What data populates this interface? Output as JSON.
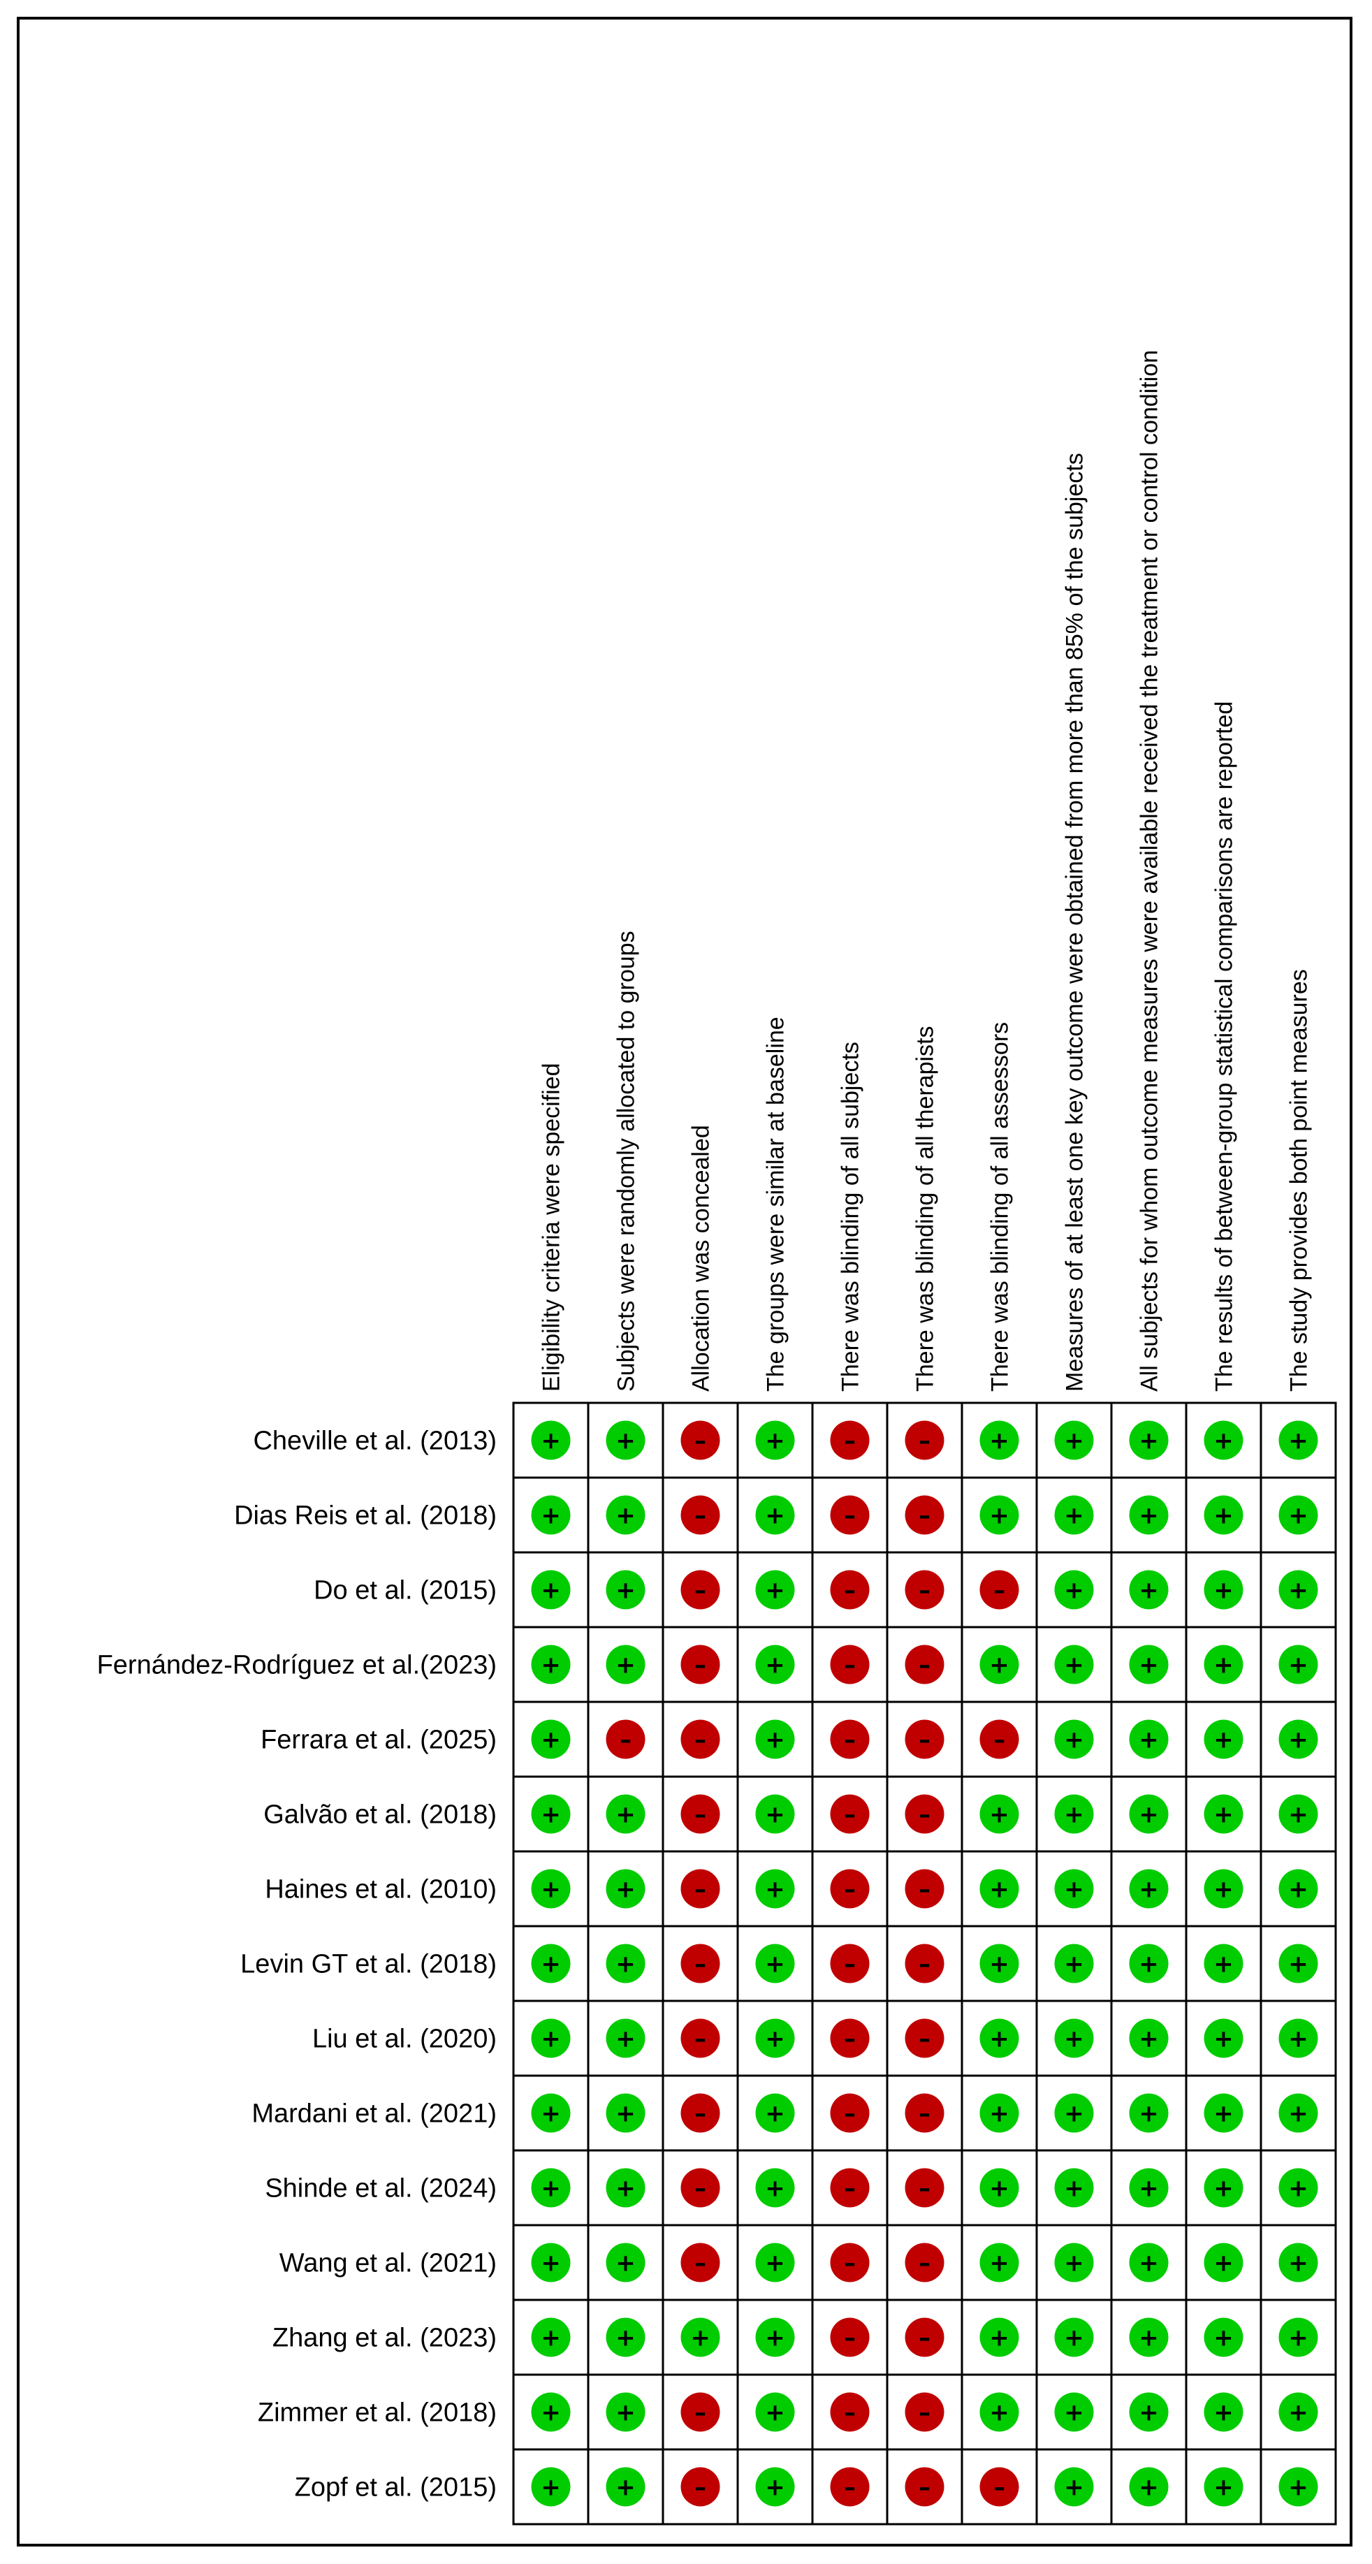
{
  "chart_data": {
    "type": "table",
    "title": "",
    "criteria": [
      "Eligibility criteria were specified",
      "Subjects were randomly allocated to groups",
      "Allocation was concealed",
      "The groups were similar at baseline",
      "There was blinding of all subjects",
      "There was blinding of all therapists",
      "There was blinding of all assessors",
      "Measures of at least one key outcome were obtained from more than 85% of the subjects",
      "All subjects for whom outcome measures were available received the treatment or control condition",
      "The results of between-group statistical comparisons are reported",
      "The study provides both point measures"
    ],
    "studies": [
      "Cheville et al. (2013)",
      "Dias Reis et al. (2018)",
      "Do et al. (2015)",
      "Fernández-Rodríguez et al.(2023)",
      "Ferrara et al. (2025)",
      "Galvão et al. (2018)",
      "Haines et al. (2010)",
      "Levin GT et al. (2018)",
      "Liu et al. (2020)",
      "Mardani et al. (2021)",
      "Shinde et al. (2024)",
      "Wang et al. (2021)",
      "Zhang et al. (2023)",
      "Zimmer et al. (2018)",
      "Zopf et al. (2015)"
    ],
    "judgements": [
      [
        "+",
        "+",
        "-",
        "+",
        "-",
        "-",
        "+",
        "+",
        "+",
        "+",
        "+"
      ],
      [
        "+",
        "+",
        "-",
        "+",
        "-",
        "-",
        "+",
        "+",
        "+",
        "+",
        "+"
      ],
      [
        "+",
        "+",
        "-",
        "+",
        "-",
        "-",
        "-",
        "+",
        "+",
        "+",
        "+"
      ],
      [
        "+",
        "+",
        "-",
        "+",
        "-",
        "-",
        "+",
        "+",
        "+",
        "+",
        "+"
      ],
      [
        "+",
        "-",
        "-",
        "+",
        "-",
        "-",
        "-",
        "+",
        "+",
        "+",
        "+"
      ],
      [
        "+",
        "+",
        "-",
        "+",
        "-",
        "-",
        "+",
        "+",
        "+",
        "+",
        "+"
      ],
      [
        "+",
        "+",
        "-",
        "+",
        "-",
        "-",
        "+",
        "+",
        "+",
        "+",
        "+"
      ],
      [
        "+",
        "+",
        "-",
        "+",
        "-",
        "-",
        "+",
        "+",
        "+",
        "+",
        "+"
      ],
      [
        "+",
        "+",
        "-",
        "+",
        "-",
        "-",
        "+",
        "+",
        "+",
        "+",
        "+"
      ],
      [
        "+",
        "+",
        "-",
        "+",
        "-",
        "-",
        "+",
        "+",
        "+",
        "+",
        "+"
      ],
      [
        "+",
        "+",
        "-",
        "+",
        "-",
        "-",
        "+",
        "+",
        "+",
        "+",
        "+"
      ],
      [
        "+",
        "+",
        "-",
        "+",
        "-",
        "-",
        "+",
        "+",
        "+",
        "+",
        "+"
      ],
      [
        "+",
        "+",
        "+",
        "+",
        "-",
        "-",
        "+",
        "+",
        "+",
        "+",
        "+"
      ],
      [
        "+",
        "+",
        "-",
        "+",
        "-",
        "-",
        "+",
        "+",
        "+",
        "+",
        "+"
      ],
      [
        "+",
        "+",
        "-",
        "+",
        "-",
        "-",
        "-",
        "+",
        "+",
        "+",
        "+"
      ]
    ],
    "symbols": {
      "positive": "+",
      "negative": "–"
    },
    "colors": {
      "positive": "#00cc00",
      "negative": "#c00000",
      "grid": "#000000"
    }
  }
}
